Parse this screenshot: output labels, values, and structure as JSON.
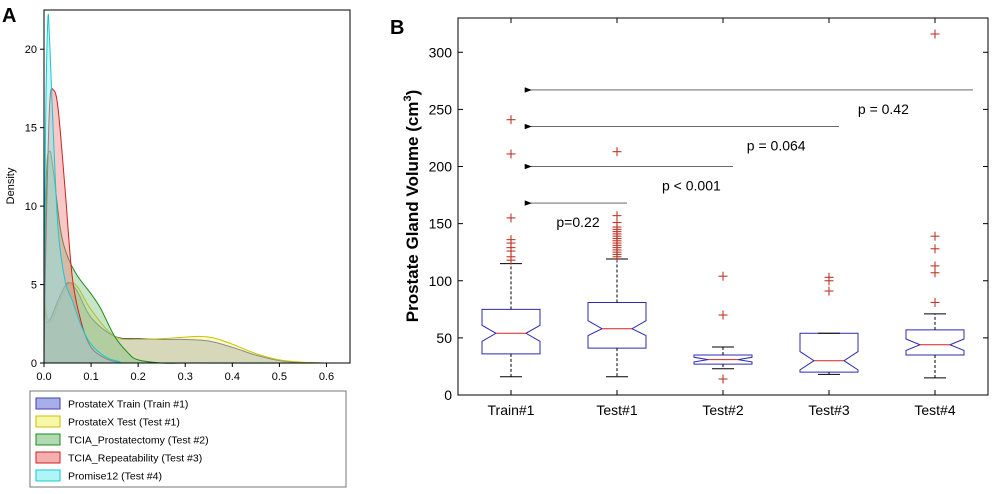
{
  "panels": {
    "a_label": "A",
    "b_label": "B"
  },
  "chart_data": [
    {
      "type": "area",
      "title": "",
      "xlabel": "",
      "ylabel": "Density",
      "xlim": [
        0,
        0.65
      ],
      "ylim": [
        0,
        22.5
      ],
      "xticks": [
        0.0,
        0.1,
        0.2,
        0.3,
        0.4,
        0.5,
        0.6
      ],
      "xtick_labels": [
        "0.0",
        "0.1",
        "0.2",
        "0.3",
        "0.4",
        "0.5",
        "0.6"
      ],
      "yticks": [
        0,
        5,
        10,
        15,
        20
      ],
      "ytick_labels": [
        "0",
        "5",
        "10",
        "15",
        "20"
      ],
      "legend_position": "below",
      "series": [
        {
          "name": "ProstateX Train (Train #1)",
          "fill": "#6f78d8",
          "stroke": "#3a44b0",
          "x": [
            0,
            0.005,
            0.015,
            0.03,
            0.05,
            0.07,
            0.1,
            0.15,
            0.2,
            0.25,
            0.3,
            0.35,
            0.4,
            0.45,
            0.5,
            0.55,
            0.6,
            0.65
          ],
          "y": [
            4.5,
            2.7,
            2.9,
            4.0,
            5.1,
            4.6,
            2.9,
            1.7,
            1.55,
            1.5,
            1.5,
            1.4,
            1.0,
            0.5,
            0.15,
            0.03,
            0.0,
            0.0
          ]
        },
        {
          "name": "ProstateX Test (Test #1)",
          "fill": "#f2f070",
          "stroke": "#c9c200",
          "x": [
            0,
            0.005,
            0.015,
            0.03,
            0.05,
            0.07,
            0.1,
            0.15,
            0.2,
            0.25,
            0.3,
            0.33,
            0.36,
            0.4,
            0.45,
            0.5,
            0.55,
            0.6,
            0.65
          ],
          "y": [
            4.8,
            3.2,
            2.6,
            3.7,
            5.0,
            4.9,
            3.4,
            1.7,
            1.5,
            1.55,
            1.65,
            1.7,
            1.6,
            1.2,
            0.6,
            0.2,
            0.05,
            0.0,
            0.0
          ]
        },
        {
          "name": "TCIA_Prostatectomy (Test #2)",
          "fill": "#7fc27f",
          "stroke": "#1e8a1e",
          "x": [
            0,
            0.005,
            0.012,
            0.02,
            0.035,
            0.05,
            0.07,
            0.1,
            0.12,
            0.15,
            0.18,
            0.2,
            0.25,
            0.3,
            0.35,
            0.65
          ],
          "y": [
            2.0,
            11.8,
            13.5,
            12.2,
            8.5,
            6.8,
            5.6,
            4.4,
            3.5,
            1.7,
            0.6,
            0.2,
            0.0,
            0.0,
            0.0,
            0.0
          ]
        },
        {
          "name": "TCIA_Repeatability (Test #3)",
          "fill": "#ef7a7a",
          "stroke": "#d02020",
          "x": [
            0,
            0.005,
            0.012,
            0.02,
            0.03,
            0.045,
            0.06,
            0.08,
            0.1,
            0.13,
            0.16,
            0.2,
            0.65
          ],
          "y": [
            1.0,
            9.0,
            16.5,
            17.4,
            16.2,
            11.0,
            5.5,
            2.5,
            1.0,
            0.3,
            0.05,
            0.0,
            0.0
          ]
        },
        {
          "name": "Promise12 (Test #4)",
          "fill": "#7cecef",
          "stroke": "#13c8d2",
          "x": [
            0,
            0.003,
            0.008,
            0.012,
            0.02,
            0.03,
            0.045,
            0.06,
            0.08,
            0.1,
            0.13,
            0.16,
            0.2,
            0.65
          ],
          "y": [
            0.5,
            14.0,
            21.8,
            20.5,
            14.5,
            8.5,
            5.2,
            4.0,
            2.3,
            1.2,
            0.4,
            0.1,
            0.0,
            0.0
          ]
        }
      ]
    },
    {
      "type": "box",
      "title": "",
      "xlabel": "",
      "ylabel": "Prostate Gland Volume (cm³)",
      "ylim": [
        0,
        330
      ],
      "yticks": [
        0,
        50,
        100,
        150,
        200,
        250,
        300
      ],
      "ytick_labels": [
        "0",
        "50",
        "100",
        "150",
        "200",
        "250",
        "300"
      ],
      "categories": [
        "Train#1",
        "Test#1",
        "Test#2",
        "Test#3",
        "Test#4"
      ],
      "boxes": [
        {
          "label": "Train#1",
          "min": 16,
          "q1": 36,
          "median": 54,
          "q3": 75,
          "max": 115,
          "notch_lo": 47,
          "notch_hi": 61,
          "outliers": [
            118,
            121,
            126,
            129,
            133,
            136,
            155,
            211,
            241
          ]
        },
        {
          "label": "Test#1",
          "min": 16,
          "q1": 41,
          "median": 58,
          "q3": 81,
          "max": 119,
          "notch_lo": 52,
          "notch_hi": 65,
          "outliers": [
            121,
            123,
            125,
            127,
            129,
            131,
            133,
            135,
            137,
            139,
            141,
            143,
            145,
            147,
            151,
            157,
            213
          ]
        },
        {
          "label": "Test#2",
          "min": 23,
          "q1": 27,
          "median": 31,
          "q3": 35,
          "max": 42,
          "notch_lo": 29,
          "notch_hi": 33,
          "outliers": [
            14,
            70,
            104
          ]
        },
        {
          "label": "Test#3",
          "min": 18,
          "q1": 20,
          "median": 30,
          "q3": 54,
          "max": 54,
          "notch_lo": 22,
          "notch_hi": 38,
          "outliers": [
            91,
            100,
            103
          ]
        },
        {
          "label": "Test#4",
          "min": 15,
          "q1": 35,
          "median": 44,
          "q3": 57,
          "max": 71,
          "notch_lo": 39,
          "notch_hi": 49,
          "outliers": [
            81,
            107,
            113,
            128,
            139,
            316
          ]
        }
      ],
      "annotations": [
        {
          "text": "p=0.22",
          "from_group": "Test#1",
          "to_group": "Train#1",
          "y_arrow": 168,
          "label_pos": "below-left"
        },
        {
          "text": "p < 0.001",
          "from_group": "Test#2",
          "to_group": "Train#1",
          "y_arrow": 200,
          "label_pos": "below"
        },
        {
          "text": "p = 0.064",
          "from_group": "Test#3",
          "to_group": "Train#1",
          "y_arrow": 235,
          "label_pos": "below"
        },
        {
          "text": "p = 0.42",
          "from_group": "Test#4",
          "to_group": "Train#1",
          "y_arrow": 267,
          "label_pos": "below"
        }
      ]
    }
  ]
}
